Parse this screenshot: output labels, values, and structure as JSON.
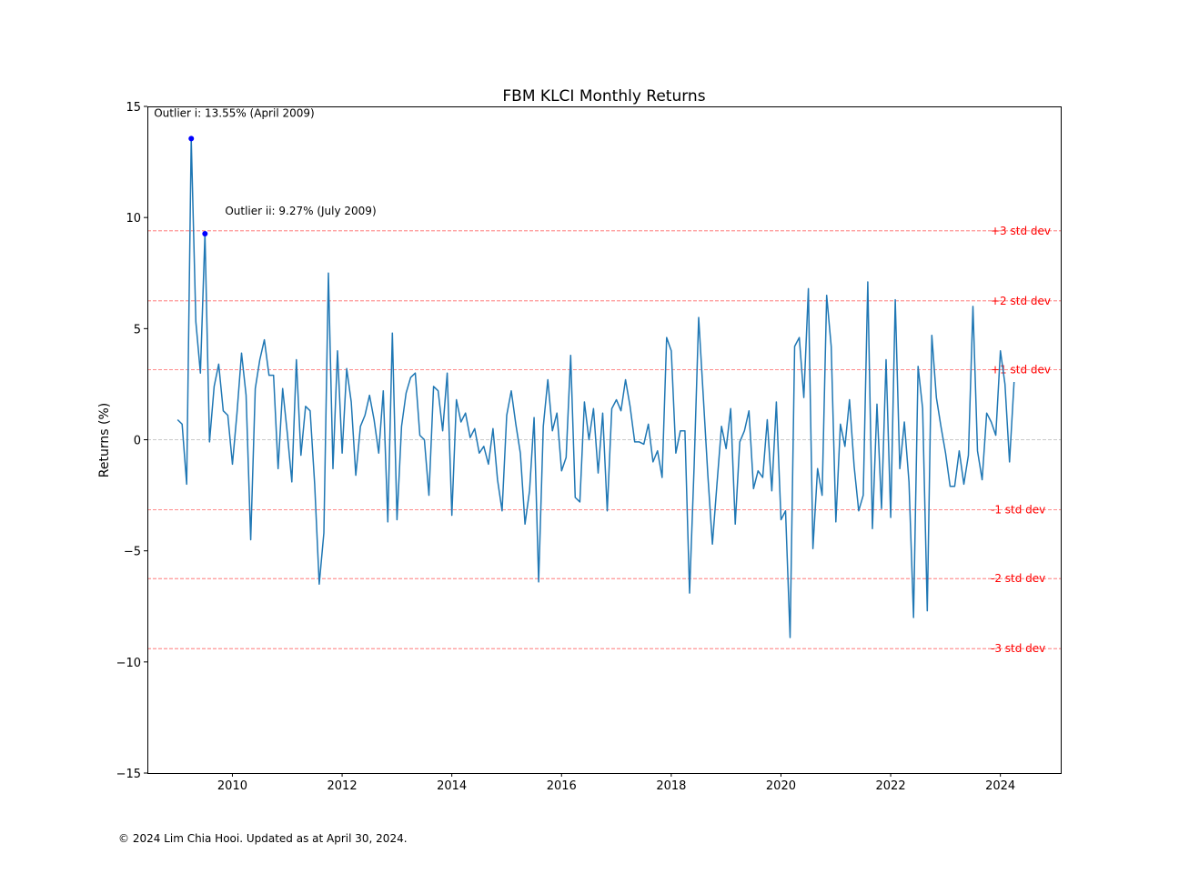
{
  "chart_data": {
    "type": "line",
    "title": "FBM KLCI Monthly Returns",
    "xlabel": "",
    "ylabel": "Returns (%)",
    "xlim": [
      2008.45,
      2025.1
    ],
    "ylim": [
      -15,
      15
    ],
    "yticks": [
      -15,
      -10,
      -5,
      0,
      5,
      10,
      15
    ],
    "yticklabels": [
      "−15",
      "−10",
      "−5",
      "0",
      "5",
      "10",
      "15"
    ],
    "xticks": [
      2010,
      2012,
      2014,
      2016,
      2018,
      2020,
      2022,
      2024
    ],
    "xticklabels": [
      "2010",
      "2012",
      "2014",
      "2016",
      "2018",
      "2020",
      "2022",
      "2024"
    ],
    "grid": false,
    "line_color": "#1f77b4",
    "start": "2009-01",
    "series": [
      {
        "values": [
          0.9,
          0.7,
          -2.0,
          13.55,
          5.3,
          3.0,
          9.27,
          -0.1,
          2.4,
          3.4,
          1.3,
          1.1,
          -1.1,
          1.2,
          3.9,
          2.0,
          -4.5,
          2.3,
          3.6,
          4.5,
          2.9,
          2.9,
          -1.3,
          2.3,
          0.3,
          -1.9,
          3.6,
          -0.7,
          1.5,
          1.3,
          -2.0,
          -6.5,
          -4.2,
          7.5,
          -1.3,
          4.0,
          -0.6,
          3.2,
          1.7,
          -1.6,
          0.6,
          1.1,
          2.0,
          0.9,
          -0.6,
          2.2,
          -3.7,
          4.8,
          -3.6,
          0.6,
          2.1,
          2.8,
          3.0,
          0.2,
          0.0,
          -2.5,
          2.4,
          2.2,
          0.4,
          3.0,
          -3.4,
          1.8,
          0.8,
          1.2,
          0.1,
          0.5,
          -0.6,
          -0.3,
          -1.1,
          0.5,
          -1.8,
          -3.2,
          1.1,
          2.2,
          0.7,
          -0.6,
          -3.8,
          -2.3,
          1.0,
          -6.4,
          0.6,
          2.7,
          0.4,
          1.2,
          -1.4,
          -0.8,
          3.8,
          -2.6,
          -2.8,
          1.7,
          0.0,
          1.4,
          -1.5,
          1.2,
          -3.2,
          1.4,
          1.8,
          1.3,
          2.7,
          1.5,
          -0.1,
          -0.1,
          -0.2,
          0.7,
          -1.0,
          -0.5,
          -1.7,
          4.6,
          4.0,
          -0.6,
          0.4,
          0.4,
          -6.9,
          -1.2,
          5.5,
          2.0,
          -1.6,
          -4.7,
          -2.0,
          0.6,
          -0.4,
          1.4,
          -3.8,
          -0.1,
          0.4,
          1.3,
          -2.2,
          -1.4,
          -1.7,
          0.9,
          -2.3,
          1.7,
          -3.6,
          -3.2,
          -8.9,
          4.2,
          4.6,
          1.9,
          6.8,
          -4.9,
          -1.3,
          -2.5,
          6.5,
          4.2,
          -3.7,
          0.7,
          -0.3,
          1.8,
          -1.2,
          -3.2,
          -2.5,
          7.1,
          -4.0,
          1.6,
          -3.1,
          3.6,
          -3.5,
          6.3,
          -1.3,
          0.8,
          -1.9,
          -8.0,
          3.3,
          1.4,
          -7.7,
          4.7,
          1.9,
          0.6,
          -0.6,
          -2.1,
          -2.1,
          -0.5,
          -2.0,
          -0.7,
          6.0,
          -0.5,
          -1.8,
          1.2,
          0.8,
          0.2,
          4.0,
          2.5,
          -1.0,
          2.6
        ]
      }
    ],
    "outliers": [
      {
        "date": "2009-04",
        "value": 13.55,
        "label": "Outlier i: 13.55% (April 2009)"
      },
      {
        "date": "2009-07",
        "value": 9.27,
        "label": "Outlier ii: 9.27% (July 2009)"
      }
    ],
    "outlier_color": "#0000ff",
    "reference_lines": [
      {
        "value": 9.4,
        "label": "+3 std dev"
      },
      {
        "value": 6.25,
        "label": "+2 std dev"
      },
      {
        "value": 3.15,
        "label": "+1 std dev"
      },
      {
        "value": 0,
        "label": ""
      },
      {
        "value": -3.15,
        "label": "-1 std dev"
      },
      {
        "value": -6.25,
        "label": "-2 std dev"
      },
      {
        "value": -9.4,
        "label": "-3 std dev"
      }
    ],
    "std_line_color": "#ff0000",
    "zero_line_color": "#999999"
  },
  "footer": "© 2024 Lim Chia Hooi. Updated as at April 30, 2024."
}
